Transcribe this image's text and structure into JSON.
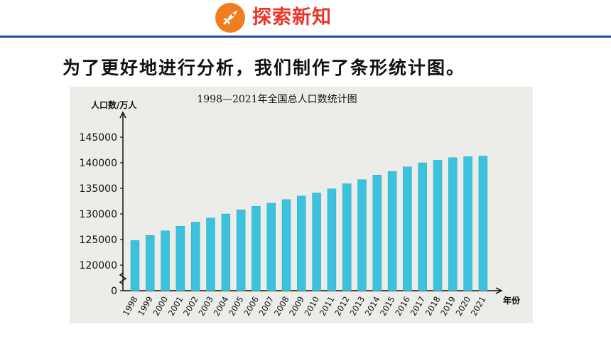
{
  "header": {
    "badge_title": "探索新知",
    "badge_icon": "rocket-icon",
    "accent_color": "#f07d1e",
    "title_color": "#e8382b",
    "line_color": "#1f4e9e"
  },
  "intro_text": "为了更好地进行分析，我们制作了条形统计图。",
  "chart_data": {
    "type": "bar",
    "title": "1998—2021年全国总人口数统计图",
    "ylabel": "人口数/万人",
    "xlabel": "年份",
    "ylim": [
      0,
      145000
    ],
    "y_axis_break": true,
    "yticks": [
      "0",
      "120000",
      "125000",
      "130000",
      "135000",
      "140000",
      "145000"
    ],
    "bar_color": "#3cc2dd",
    "categories": [
      "1998",
      "1999",
      "2000",
      "2001",
      "2002",
      "2003",
      "2004",
      "2005",
      "2006",
      "2007",
      "2008",
      "2009",
      "2010",
      "2011",
      "2012",
      "2013",
      "2014",
      "2015",
      "2016",
      "2017",
      "2018",
      "2019",
      "2020",
      "2021"
    ],
    "values": [
      124800,
      125800,
      126700,
      127600,
      128400,
      129200,
      130000,
      130800,
      131500,
      132100,
      132800,
      133500,
      134100,
      134900,
      135900,
      136700,
      137600,
      138300,
      139200,
      140000,
      140500,
      141000,
      141200,
      141300
    ]
  }
}
